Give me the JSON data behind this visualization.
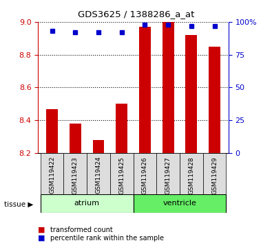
{
  "title": "GDS3625 / 1388286_a_at",
  "samples": [
    "GSM119422",
    "GSM119423",
    "GSM119424",
    "GSM119425",
    "GSM119426",
    "GSM119427",
    "GSM119428",
    "GSM119429"
  ],
  "red_values": [
    8.47,
    8.38,
    8.28,
    8.5,
    8.97,
    9.0,
    8.92,
    8.85
  ],
  "blue_values_pct": [
    93,
    92,
    92,
    92,
    98,
    98,
    97,
    97
  ],
  "ymin": 8.2,
  "ymax": 9.0,
  "y_ticks": [
    8.2,
    8.4,
    8.6,
    8.8,
    9.0
  ],
  "right_y_ticks": [
    0,
    25,
    50,
    75,
    100
  ],
  "right_y_labels": [
    "0",
    "25",
    "50",
    "75",
    "100%"
  ],
  "atrium_color": "#ccffcc",
  "ventricle_color": "#66ee66",
  "bar_color": "#cc0000",
  "dot_color": "#0000cc",
  "bg_color": "#ffffff",
  "sample_bg": "#dddddd",
  "left_tick_color": "#cc0000",
  "right_tick_color": "#0000cc"
}
